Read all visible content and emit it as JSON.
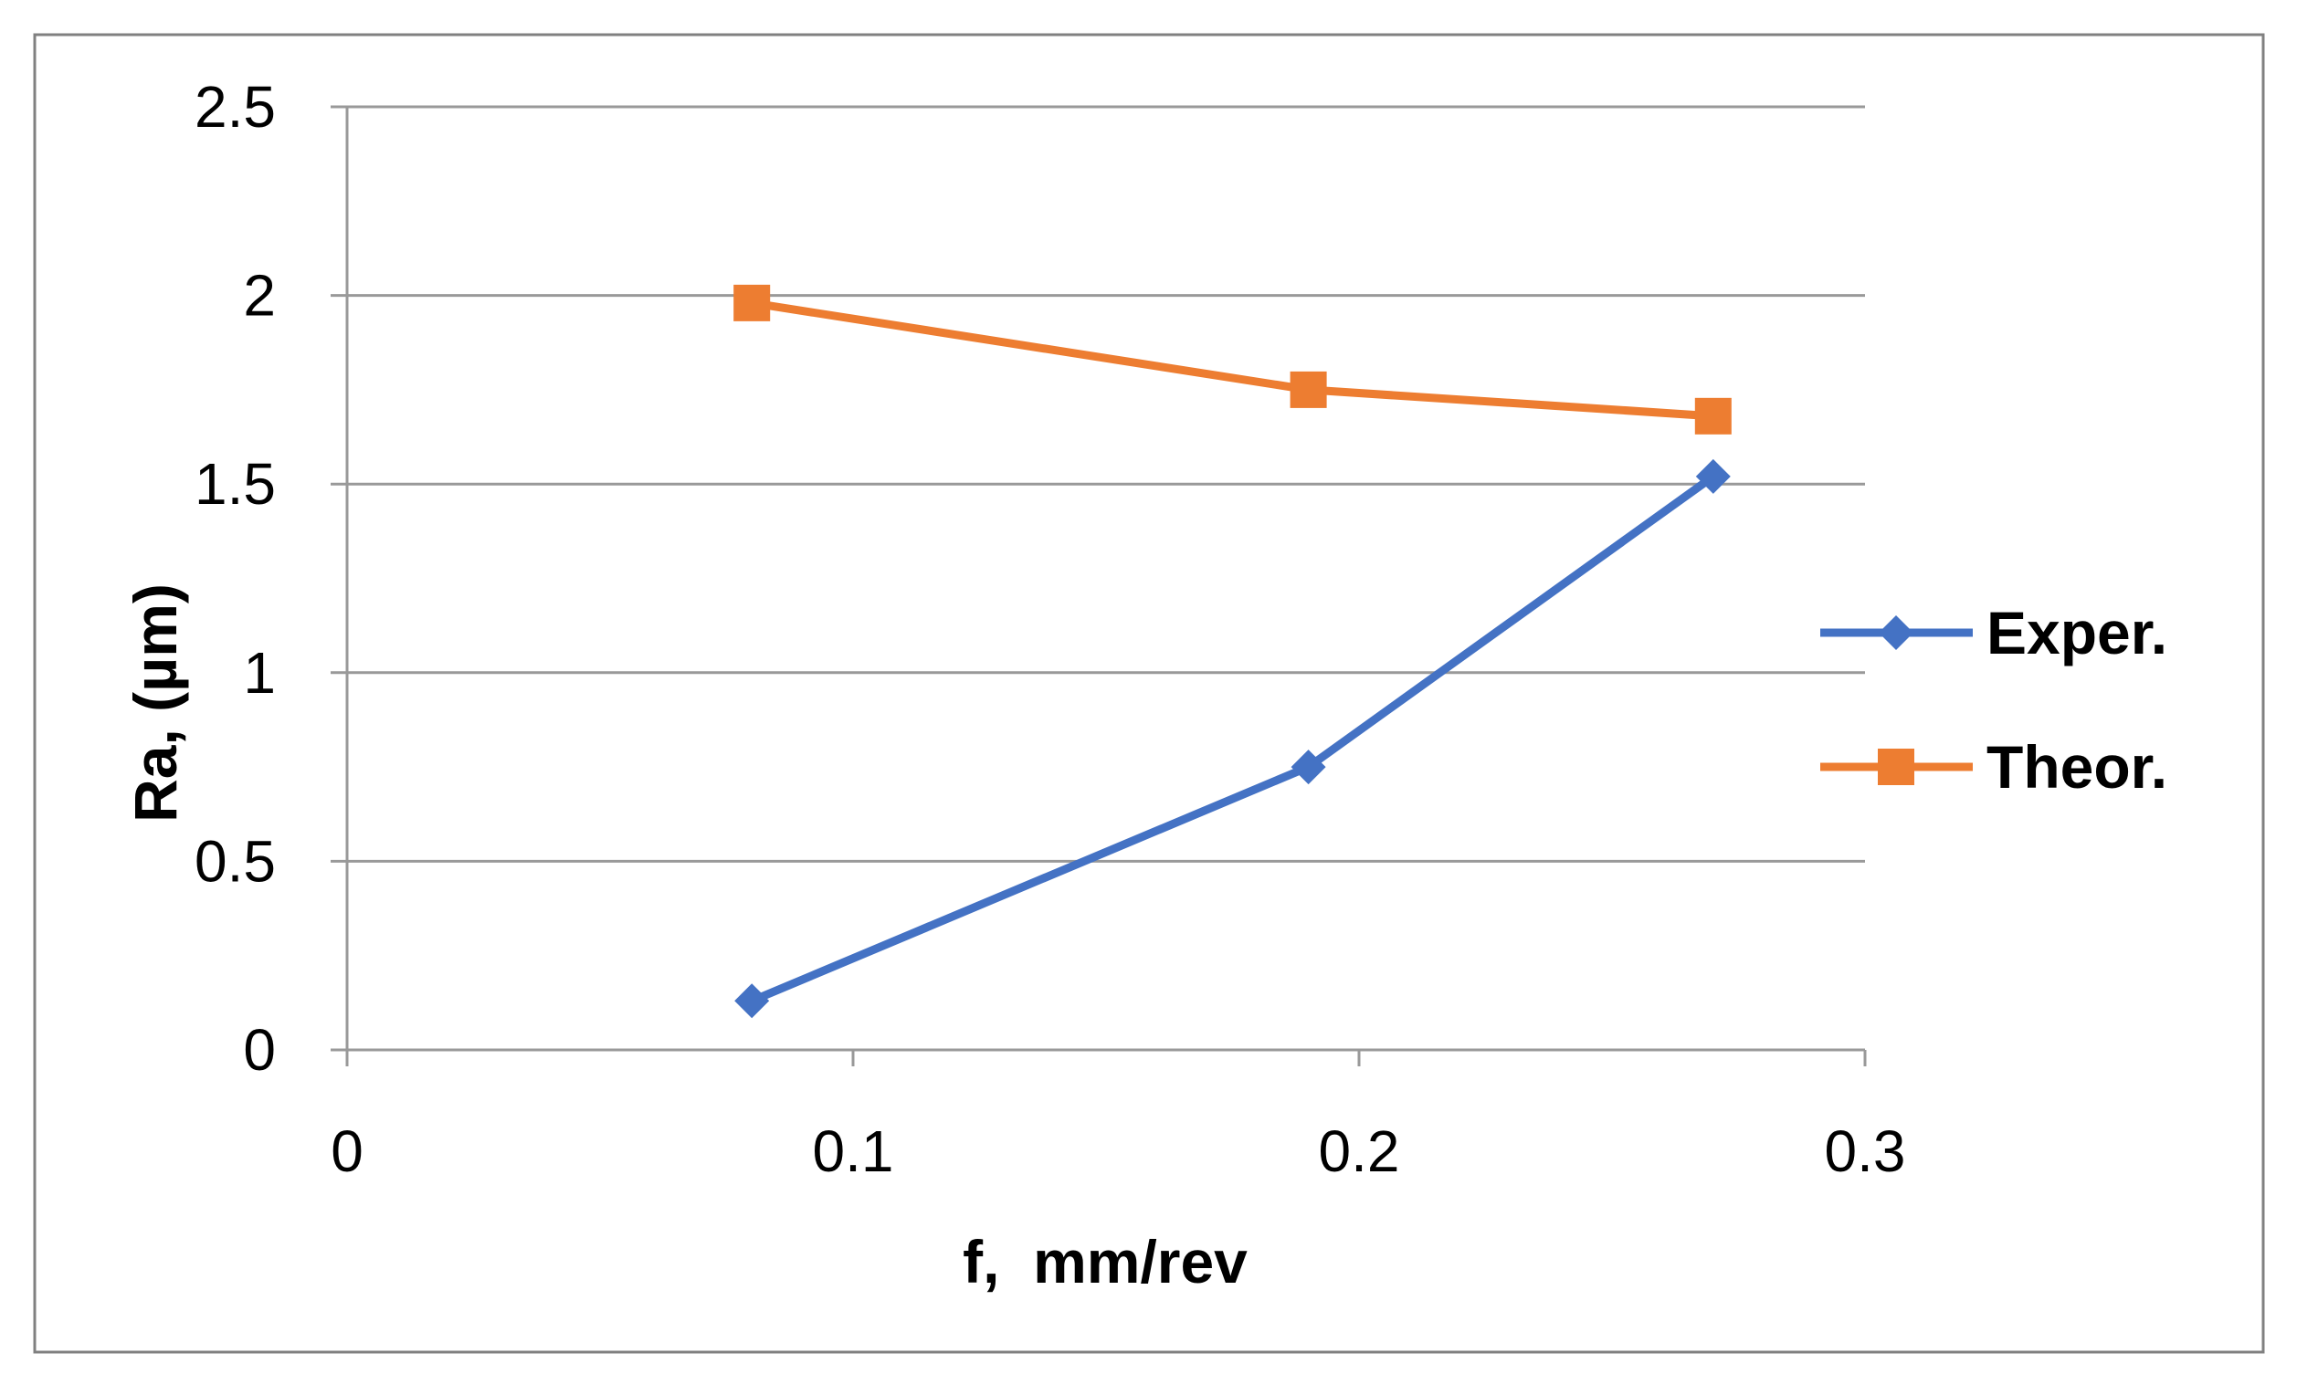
{
  "chart_data": {
    "type": "line",
    "title": "",
    "xlabel": "f,  mm/rev",
    "ylabel": "Ra, (µm)",
    "xlim": [
      0,
      0.3
    ],
    "ylim": [
      0,
      2.5
    ],
    "xticks": [
      0,
      0.1,
      0.2,
      0.3
    ],
    "xtick_labels": [
      "0",
      "0.1",
      "0.2",
      "0.3"
    ],
    "yticks": [
      0,
      0.5,
      1,
      1.5,
      2,
      2.5
    ],
    "ytick_labels": [
      "0",
      "0.5",
      "1",
      "1.5",
      "2",
      "2.5"
    ],
    "grid": "horizontal",
    "legend_position": "right",
    "series": [
      {
        "name": "Exper.",
        "color": "#4472C4",
        "marker": "diamond",
        "x": [
          0.08,
          0.19,
          0.27
        ],
        "y": [
          0.13,
          0.75,
          1.52
        ]
      },
      {
        "name": "Theor.",
        "color": "#ED7D31",
        "marker": "square",
        "x": [
          0.08,
          0.19,
          0.27
        ],
        "y": [
          1.98,
          1.75,
          1.68
        ]
      }
    ]
  }
}
